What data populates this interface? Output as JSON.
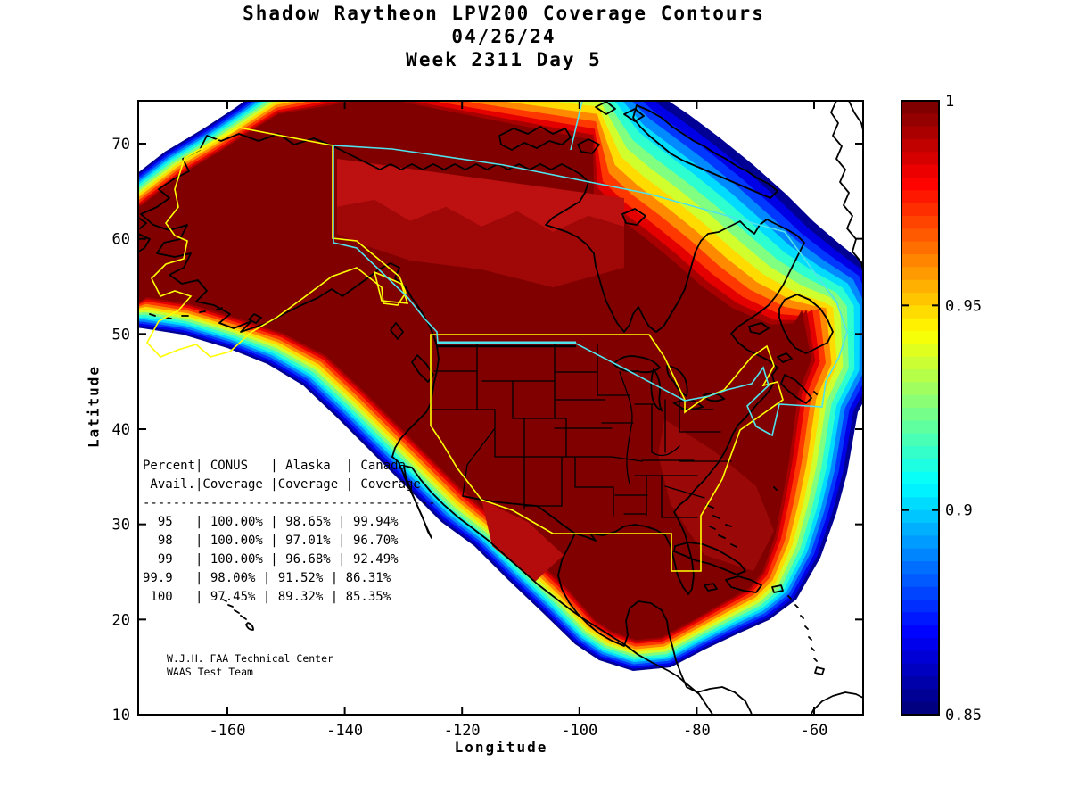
{
  "title": {
    "line1": "Shadow Raytheon LPV200 Coverage Contours",
    "line2": "04/26/24",
    "line3": "Week 2311 Day 5"
  },
  "axes": {
    "xlabel": "Longitude",
    "ylabel": "Latitude",
    "xtick_labels": [
      "-160",
      "-140",
      "-120",
      "-100",
      "-80",
      "-60"
    ],
    "xtick_values": [
      -160,
      -140,
      -120,
      -100,
      -80,
      -60
    ],
    "ytick_labels": [
      "10",
      "20",
      "30",
      "40",
      "50",
      "60",
      "70"
    ],
    "ytick_values": [
      10,
      20,
      30,
      40,
      50,
      60,
      70
    ]
  },
  "colorbar": {
    "tick_labels": [
      "1",
      "0.95",
      "0.9",
      "0.85"
    ],
    "tick_values": [
      1,
      0.95,
      0.9,
      0.85
    ],
    "vmin": 0.85,
    "vmax": 1,
    "colormap": "jet",
    "top_color": "#800000",
    "bottom_color": "#000090"
  },
  "coverage_table": {
    "col_headers_row1": [
      "Percent",
      "CONUS",
      "Alaska",
      "Canada"
    ],
    "col_headers_row2": [
      "Avail.",
      "Coverage",
      "Coverage",
      "Coverage"
    ],
    "rows": [
      [
        "95",
        "100.00%",
        "98.65%",
        "99.94%"
      ],
      [
        "98",
        "100.00%",
        "97.01%",
        "96.70%"
      ],
      [
        "99",
        "100.00%",
        "96.68%",
        "92.49%"
      ],
      [
        "99.9",
        "98.00%",
        "91.52%",
        "86.31%"
      ],
      [
        "100",
        "97.45%",
        "89.32%",
        "85.35%"
      ]
    ]
  },
  "attribution": {
    "line1": "W.J.H. FAA Technical Center",
    "line2": "WAAS Test Team"
  },
  "boundary_colors": {
    "conus_alaska": "#ffff00",
    "canada": "#4fe3ec",
    "coastline": "#000000"
  },
  "chart_data": {
    "type": "heatmap",
    "subtype": "filled-contour-coverage-map",
    "title": "Shadow Raytheon LPV200 Coverage Contours",
    "subtitle": [
      "04/26/24",
      "Week 2311 Day 5"
    ],
    "xlabel": "Longitude",
    "ylabel": "Latitude",
    "xlim": [
      -175,
      -51.5
    ],
    "ylim": [
      10,
      74.5
    ],
    "xticks": [
      -160,
      -140,
      -120,
      -100,
      -80,
      -60
    ],
    "yticks": [
      10,
      20,
      30,
      40,
      50,
      60,
      70
    ],
    "grid": false,
    "legend_position": "right-colorbar",
    "colorbar": {
      "range": [
        0.85,
        1
      ],
      "ticks": [
        1,
        0.95,
        0.9,
        0.85
      ],
      "colormap": "jet-reversed-topdark"
    },
    "regions_outlined": [
      "CONUS (yellow)",
      "Alaska (yellow)",
      "Canada (cyan)"
    ],
    "availability_table": {
      "columns": [
        "Percent Avail.",
        "CONUS Coverage",
        "Alaska Coverage",
        "Canada Coverage"
      ],
      "rows": [
        [
          95,
          "100.00%",
          "98.65%",
          "99.94%"
        ],
        [
          98,
          "100.00%",
          "97.01%",
          "96.70%"
        ],
        [
          99,
          "100.00%",
          "96.68%",
          "92.49%"
        ],
        [
          99.9,
          "98.00%",
          "91.52%",
          "86.31%"
        ],
        [
          100,
          "97.45%",
          "89.32%",
          "85.35%"
        ]
      ]
    },
    "description": "Coverage availability contours (0.85-1.0) over North America; dark red core near 1.0 covering CONUS, Alaska and most of Canada, rainbow fringe bands toward edges."
  }
}
